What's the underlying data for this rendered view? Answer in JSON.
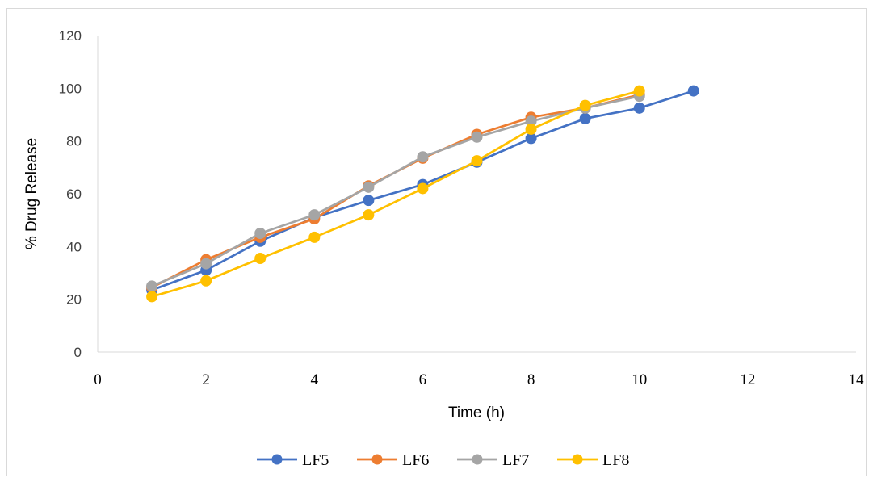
{
  "chart_data": {
    "type": "scatter",
    "mode": "lines+markers",
    "xlabel": "Time (h)",
    "ylabel": "% Drug Release",
    "xlim": [
      0,
      14
    ],
    "ylim": [
      0,
      120
    ],
    "x_ticks": [
      0,
      2,
      4,
      6,
      8,
      10,
      12,
      14
    ],
    "y_ticks": [
      0,
      20,
      40,
      60,
      80,
      100,
      120
    ],
    "grid": false,
    "legend_position": "bottom",
    "series": [
      {
        "name": "LF5",
        "color": "#4472C4",
        "x": [
          1,
          2,
          3,
          4,
          5,
          6,
          7,
          8,
          9,
          10,
          11
        ],
        "y": [
          23.5,
          31,
          42,
          51,
          57.5,
          63.5,
          72,
          81,
          88.5,
          92.5,
          99
        ]
      },
      {
        "name": "LF6",
        "color": "#ED7D31",
        "x": [
          1,
          2,
          3,
          4,
          5,
          6,
          7,
          8,
          9,
          10
        ],
        "y": [
          24.5,
          35,
          43.5,
          50.5,
          63,
          73.5,
          82.5,
          89,
          92.5,
          97.5
        ]
      },
      {
        "name": "LF7",
        "color": "#A5A5A5",
        "x": [
          1,
          2,
          3,
          4,
          5,
          6,
          7,
          8,
          9,
          10
        ],
        "y": [
          25,
          33.5,
          45,
          52,
          62.5,
          74,
          81.5,
          87.5,
          92.5,
          97
        ]
      },
      {
        "name": "LF8",
        "color": "#FFC000",
        "x": [
          1,
          2,
          3,
          4,
          5,
          6,
          7,
          8,
          9,
          10
        ],
        "y": [
          21,
          27,
          35.5,
          43.5,
          52,
          62,
          72.5,
          84.5,
          93.5,
          99
        ]
      }
    ]
  }
}
